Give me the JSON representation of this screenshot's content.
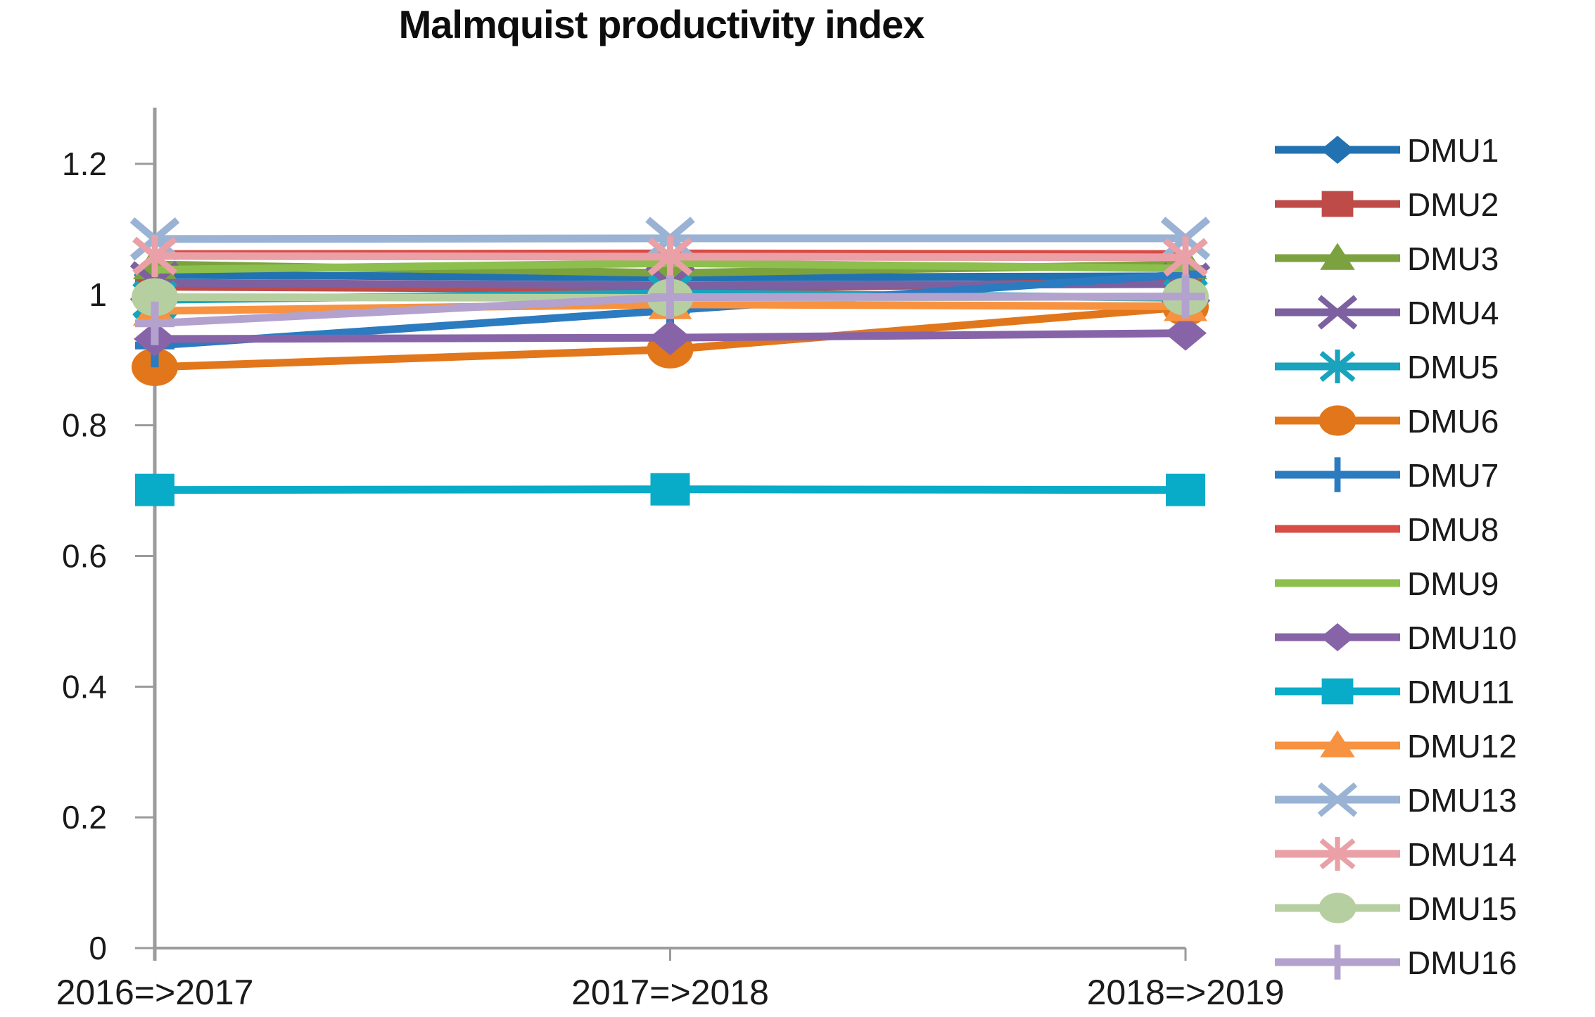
{
  "chart_data": {
    "type": "line",
    "title": "Malmquist productivity index",
    "categories": [
      "2016=>2017",
      "2017=>2018",
      "2018=>2019"
    ],
    "y_axis": {
      "min": 0,
      "max": 1.2,
      "tick_step": 0.2,
      "tick_labels": [
        "0",
        "0.2",
        "0.4",
        "0.6",
        "0.8",
        "1",
        "1.2"
      ]
    },
    "grid": false,
    "legend_position": "right",
    "series": [
      {
        "name": "DMU1",
        "color": "#2272B2",
        "marker": "diamond",
        "values": [
          1.03,
          1.026,
          1.028
        ]
      },
      {
        "name": "DMU2",
        "color": "#BE4B48",
        "marker": "square",
        "values": [
          1.012,
          1.008,
          1.02
        ]
      },
      {
        "name": "DMU3",
        "color": "#7BA23E",
        "marker": "triangle",
        "values": [
          1.046,
          1.033,
          1.046
        ]
      },
      {
        "name": "DMU4",
        "color": "#7D60A0",
        "marker": "x",
        "values": [
          1.018,
          1.014,
          1.016
        ]
      },
      {
        "name": "DMU5",
        "color": "#19A3BC",
        "marker": "asterisk",
        "values": [
          0.992,
          1.002,
          0.995
        ]
      },
      {
        "name": "DMU6",
        "color": "#E2761B",
        "marker": "circle",
        "values": [
          0.889,
          0.916,
          0.981
        ]
      },
      {
        "name": "DMU7",
        "color": "#2B7BC0",
        "marker": "plus",
        "values": [
          0.922,
          0.976,
          1.031
        ]
      },
      {
        "name": "DMU8",
        "color": "#D94B45",
        "marker": "none",
        "values": [
          1.062,
          1.063,
          1.062
        ]
      },
      {
        "name": "DMU9",
        "color": "#8CBF4D",
        "marker": "none",
        "values": [
          1.038,
          1.048,
          1.04
        ]
      },
      {
        "name": "DMU10",
        "color": "#8764A8",
        "marker": "diamond",
        "values": [
          0.932,
          0.934,
          0.941
        ]
      },
      {
        "name": "DMU11",
        "color": "#09ACC8",
        "marker": "square",
        "values": [
          0.701,
          0.702,
          0.701
        ]
      },
      {
        "name": "DMU12",
        "color": "#F79240",
        "marker": "triangle",
        "values": [
          0.975,
          0.985,
          0.982
        ]
      },
      {
        "name": "DMU13",
        "color": "#9AB3D5",
        "marker": "x",
        "values": [
          1.085,
          1.086,
          1.086
        ]
      },
      {
        "name": "DMU14",
        "color": "#E9A0A6",
        "marker": "asterisk",
        "values": [
          1.059,
          1.058,
          1.057
        ]
      },
      {
        "name": "DMU15",
        "color": "#B6CFA0",
        "marker": "circle",
        "values": [
          0.996,
          0.995,
          0.997
        ]
      },
      {
        "name": "DMU16",
        "color": "#B3A2CE",
        "marker": "plus",
        "values": [
          0.956,
          0.996,
          0.997
        ]
      }
    ]
  },
  "colors": {
    "axis": "#9B9B9B",
    "text": "#1A1A1A"
  }
}
